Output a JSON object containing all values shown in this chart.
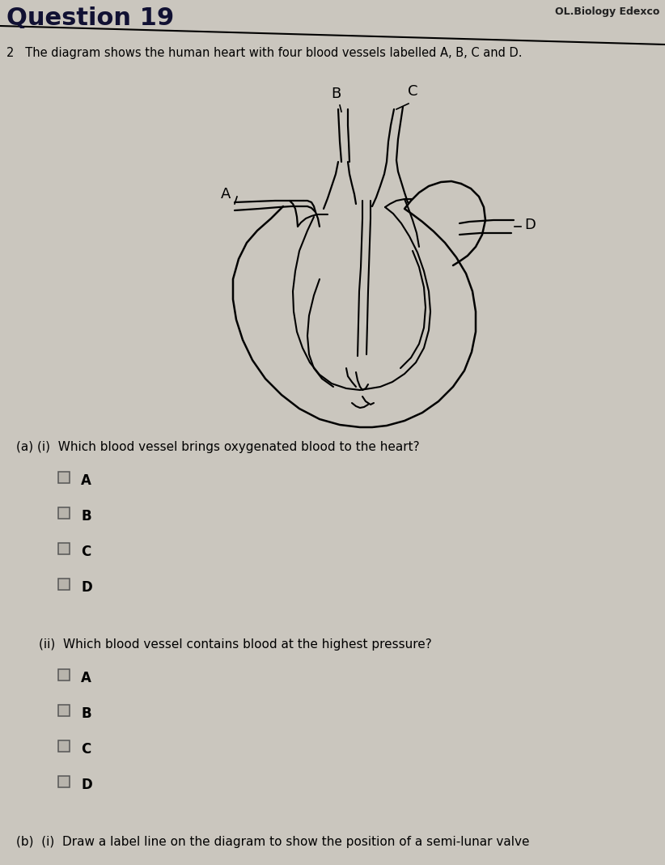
{
  "bg_color": "#cac6be",
  "title": "Question 19",
  "top_right": "OL.Biology Edexco",
  "line2": "2   The diagram shows the human heart with four blood vessels labelled A, B, C and D.",
  "qa_i": "(a) (i)  Which blood vessel brings oxygenated blood to the heart?",
  "qa_ii": "(ii)  Which blood vessel contains blood at the highest pressure?",
  "qb_i": "(b)  (i)  Draw a label line on the diagram to show the position of a semi-lunar valve",
  "options": [
    "A",
    "B",
    "C",
    "D"
  ],
  "label_A": "A",
  "label_B": "B",
  "label_C": "C",
  "label_D": "D",
  "line_color": "black",
  "text_color": "black",
  "checkbox_face": "#b8b4ac",
  "checkbox_edge": "#555555"
}
